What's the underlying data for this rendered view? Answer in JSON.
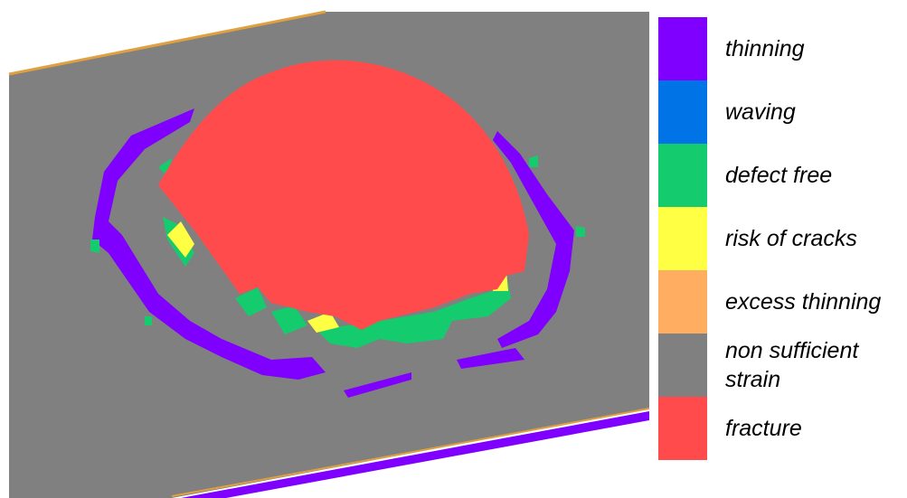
{
  "legend": {
    "items": [
      {
        "label": "thinning",
        "color": "#7f00ff"
      },
      {
        "label": "waving",
        "color": "#0073e6"
      },
      {
        "label": "defect free",
        "color": "#14cc6e"
      },
      {
        "label": "risk of cracks",
        "color": "#ffff44"
      },
      {
        "label": "excess thinning",
        "color": "#ffad60"
      },
      {
        "label": "non sufficient strain",
        "color": "#808080"
      },
      {
        "label": "fracture",
        "color": "#ff4b4b"
      }
    ]
  },
  "plot": {
    "edge_color": "#e0a040"
  }
}
